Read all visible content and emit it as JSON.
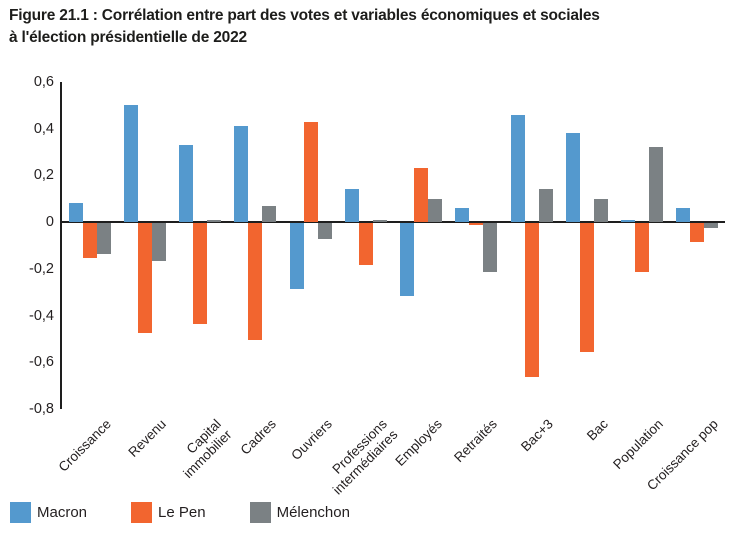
{
  "figure": {
    "title": "Figure 21.1 : Corrélation entre part des votes et variables économiques et sociales\nà l'élection présidentielle de 2022"
  },
  "chart_data": {
    "type": "bar",
    "title": "Figure 21.1 : Corrélation entre part des votes et variables économiques et sociales à l'élection présidentielle de 2022",
    "categories": [
      "Croissance",
      "Revenu",
      "Capital immobilier",
      "Cadres",
      "Ouvriers",
      "Professions intermédiaires",
      "Employés",
      "Retraités",
      "Bac+3",
      "Bac",
      "Population",
      "Croissance pop"
    ],
    "category_labels": [
      "Croissance",
      "Revenu",
      "Capital\nimmobilier",
      "Cadres",
      "Ouvriers",
      "Professions\nintermédiaires",
      "Employés",
      "Retraités",
      "Bac+3",
      "Bac",
      "Population",
      "Croissance pop"
    ],
    "series": [
      {
        "name": "Macron",
        "color": "#5499CE",
        "values": [
          0.08,
          0.5,
          0.33,
          0.41,
          -0.28,
          0.14,
          -0.31,
          0.06,
          0.46,
          0.38,
          0.01,
          0.06
        ]
      },
      {
        "name": "Le Pen",
        "color": "#F2652F",
        "values": [
          -0.15,
          -0.47,
          -0.43,
          -0.5,
          0.43,
          -0.18,
          0.23,
          -0.01,
          -0.66,
          -0.55,
          -0.21,
          -0.08
        ]
      },
      {
        "name": "Mélenchon",
        "color": "#7B8184",
        "values": [
          -0.13,
          -0.16,
          0.01,
          0.07,
          -0.07,
          0.01,
          0.1,
          -0.21,
          0.14,
          0.1,
          0.32,
          -0.02
        ]
      }
    ],
    "xlabel": "",
    "ylabel": "",
    "ylim": [
      -0.8,
      0.6
    ],
    "yticks": {
      "labels": [
        "0,6",
        "0,4",
        "0,2",
        "0",
        "-0,2",
        "-0,4",
        "-0,6",
        "-0,8"
      ],
      "values": [
        0.6,
        0.4,
        0.2,
        0,
        -0.2,
        -0.4,
        -0.6,
        -0.8
      ]
    },
    "grid": false,
    "legend_position": "bottom",
    "axis_color": "#1e1e1e"
  }
}
